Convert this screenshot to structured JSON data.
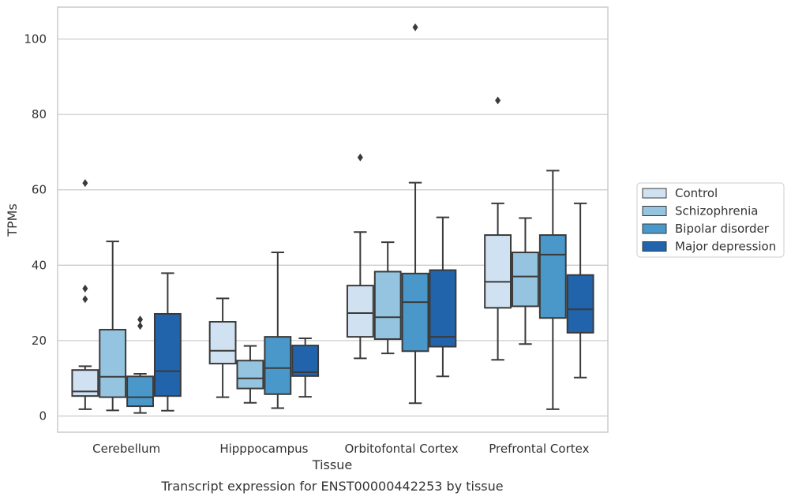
{
  "caption": "Transcript expression for ENST00000442253 by tissue",
  "chart_data": {
    "type": "box",
    "xlabel": "Tissue",
    "ylabel": "TPMs",
    "ylim": [
      -4,
      108
    ],
    "yticks": [
      0,
      20,
      40,
      60,
      80,
      100
    ],
    "grid": "horizontal",
    "legend_position": "right",
    "categories": [
      "Cerebellum",
      "Hipppocampus",
      "Orbitofontal Cortex",
      "Prefrontal Cortex"
    ],
    "series": [
      {
        "name": "Control",
        "color": "#d0e1f2",
        "boxes": [
          {
            "whisker_low": 1.8,
            "q1": 5.3,
            "median": 6.5,
            "q3": 12.2,
            "whisker_high": 13.2,
            "outliers": [
              31,
              33.8,
              61.8
            ]
          },
          {
            "whisker_low": 5.0,
            "q1": 13.9,
            "median": 17.3,
            "q3": 25.0,
            "whisker_high": 31.2,
            "outliers": []
          },
          {
            "whisker_low": 15.3,
            "q1": 21.0,
            "median": 27.3,
            "q3": 34.6,
            "whisker_high": 48.8,
            "outliers": [
              68.6
            ]
          },
          {
            "whisker_low": 14.9,
            "q1": 28.7,
            "median": 35.6,
            "q3": 48.0,
            "whisker_high": 56.4,
            "outliers": [
              83.7
            ]
          }
        ]
      },
      {
        "name": "Schizophrenia",
        "color": "#94c4df",
        "boxes": [
          {
            "whisker_low": 1.5,
            "q1": 5.0,
            "median": 10.4,
            "q3": 22.9,
            "whisker_high": 46.3,
            "outliers": []
          },
          {
            "whisker_low": 3.5,
            "q1": 7.3,
            "median": 10.0,
            "q3": 14.7,
            "whisker_high": 18.6,
            "outliers": []
          },
          {
            "whisker_low": 16.6,
            "q1": 20.4,
            "median": 26.2,
            "q3": 38.3,
            "whisker_high": 46.1,
            "outliers": []
          },
          {
            "whisker_low": 19.1,
            "q1": 29.1,
            "median": 37.0,
            "q3": 43.4,
            "whisker_high": 52.5,
            "outliers": []
          }
        ]
      },
      {
        "name": "Bipolar disorder",
        "color": "#4a98c9",
        "boxes": [
          {
            "whisker_low": 0.8,
            "q1": 2.6,
            "median": 5.0,
            "q3": 10.5,
            "whisker_high": 11.2,
            "outliers": [
              23.9,
              25.6
            ]
          },
          {
            "whisker_low": 2.1,
            "q1": 5.8,
            "median": 12.7,
            "q3": 21.0,
            "whisker_high": 43.4,
            "outliers": []
          },
          {
            "whisker_low": 3.4,
            "q1": 17.2,
            "median": 30.2,
            "q3": 37.8,
            "whisker_high": 61.9,
            "outliers": [
              103.1
            ]
          },
          {
            "whisker_low": 1.8,
            "q1": 26.0,
            "median": 42.8,
            "q3": 48.0,
            "whisker_high": 65.1,
            "outliers": []
          }
        ]
      },
      {
        "name": "Major depression",
        "color": "#2264ab",
        "boxes": [
          {
            "whisker_low": 1.4,
            "q1": 5.3,
            "median": 11.9,
            "q3": 27.1,
            "whisker_high": 37.9,
            "outliers": []
          },
          {
            "whisker_low": 5.1,
            "q1": 10.6,
            "median": 11.6,
            "q3": 18.7,
            "whisker_high": 20.6,
            "outliers": []
          },
          {
            "whisker_low": 10.5,
            "q1": 18.4,
            "median": 21.0,
            "q3": 38.7,
            "whisker_high": 52.7,
            "outliers": []
          },
          {
            "whisker_low": 10.2,
            "q1": 22.1,
            "median": 28.3,
            "q3": 37.4,
            "whisker_high": 56.4,
            "outliers": []
          }
        ]
      }
    ]
  }
}
